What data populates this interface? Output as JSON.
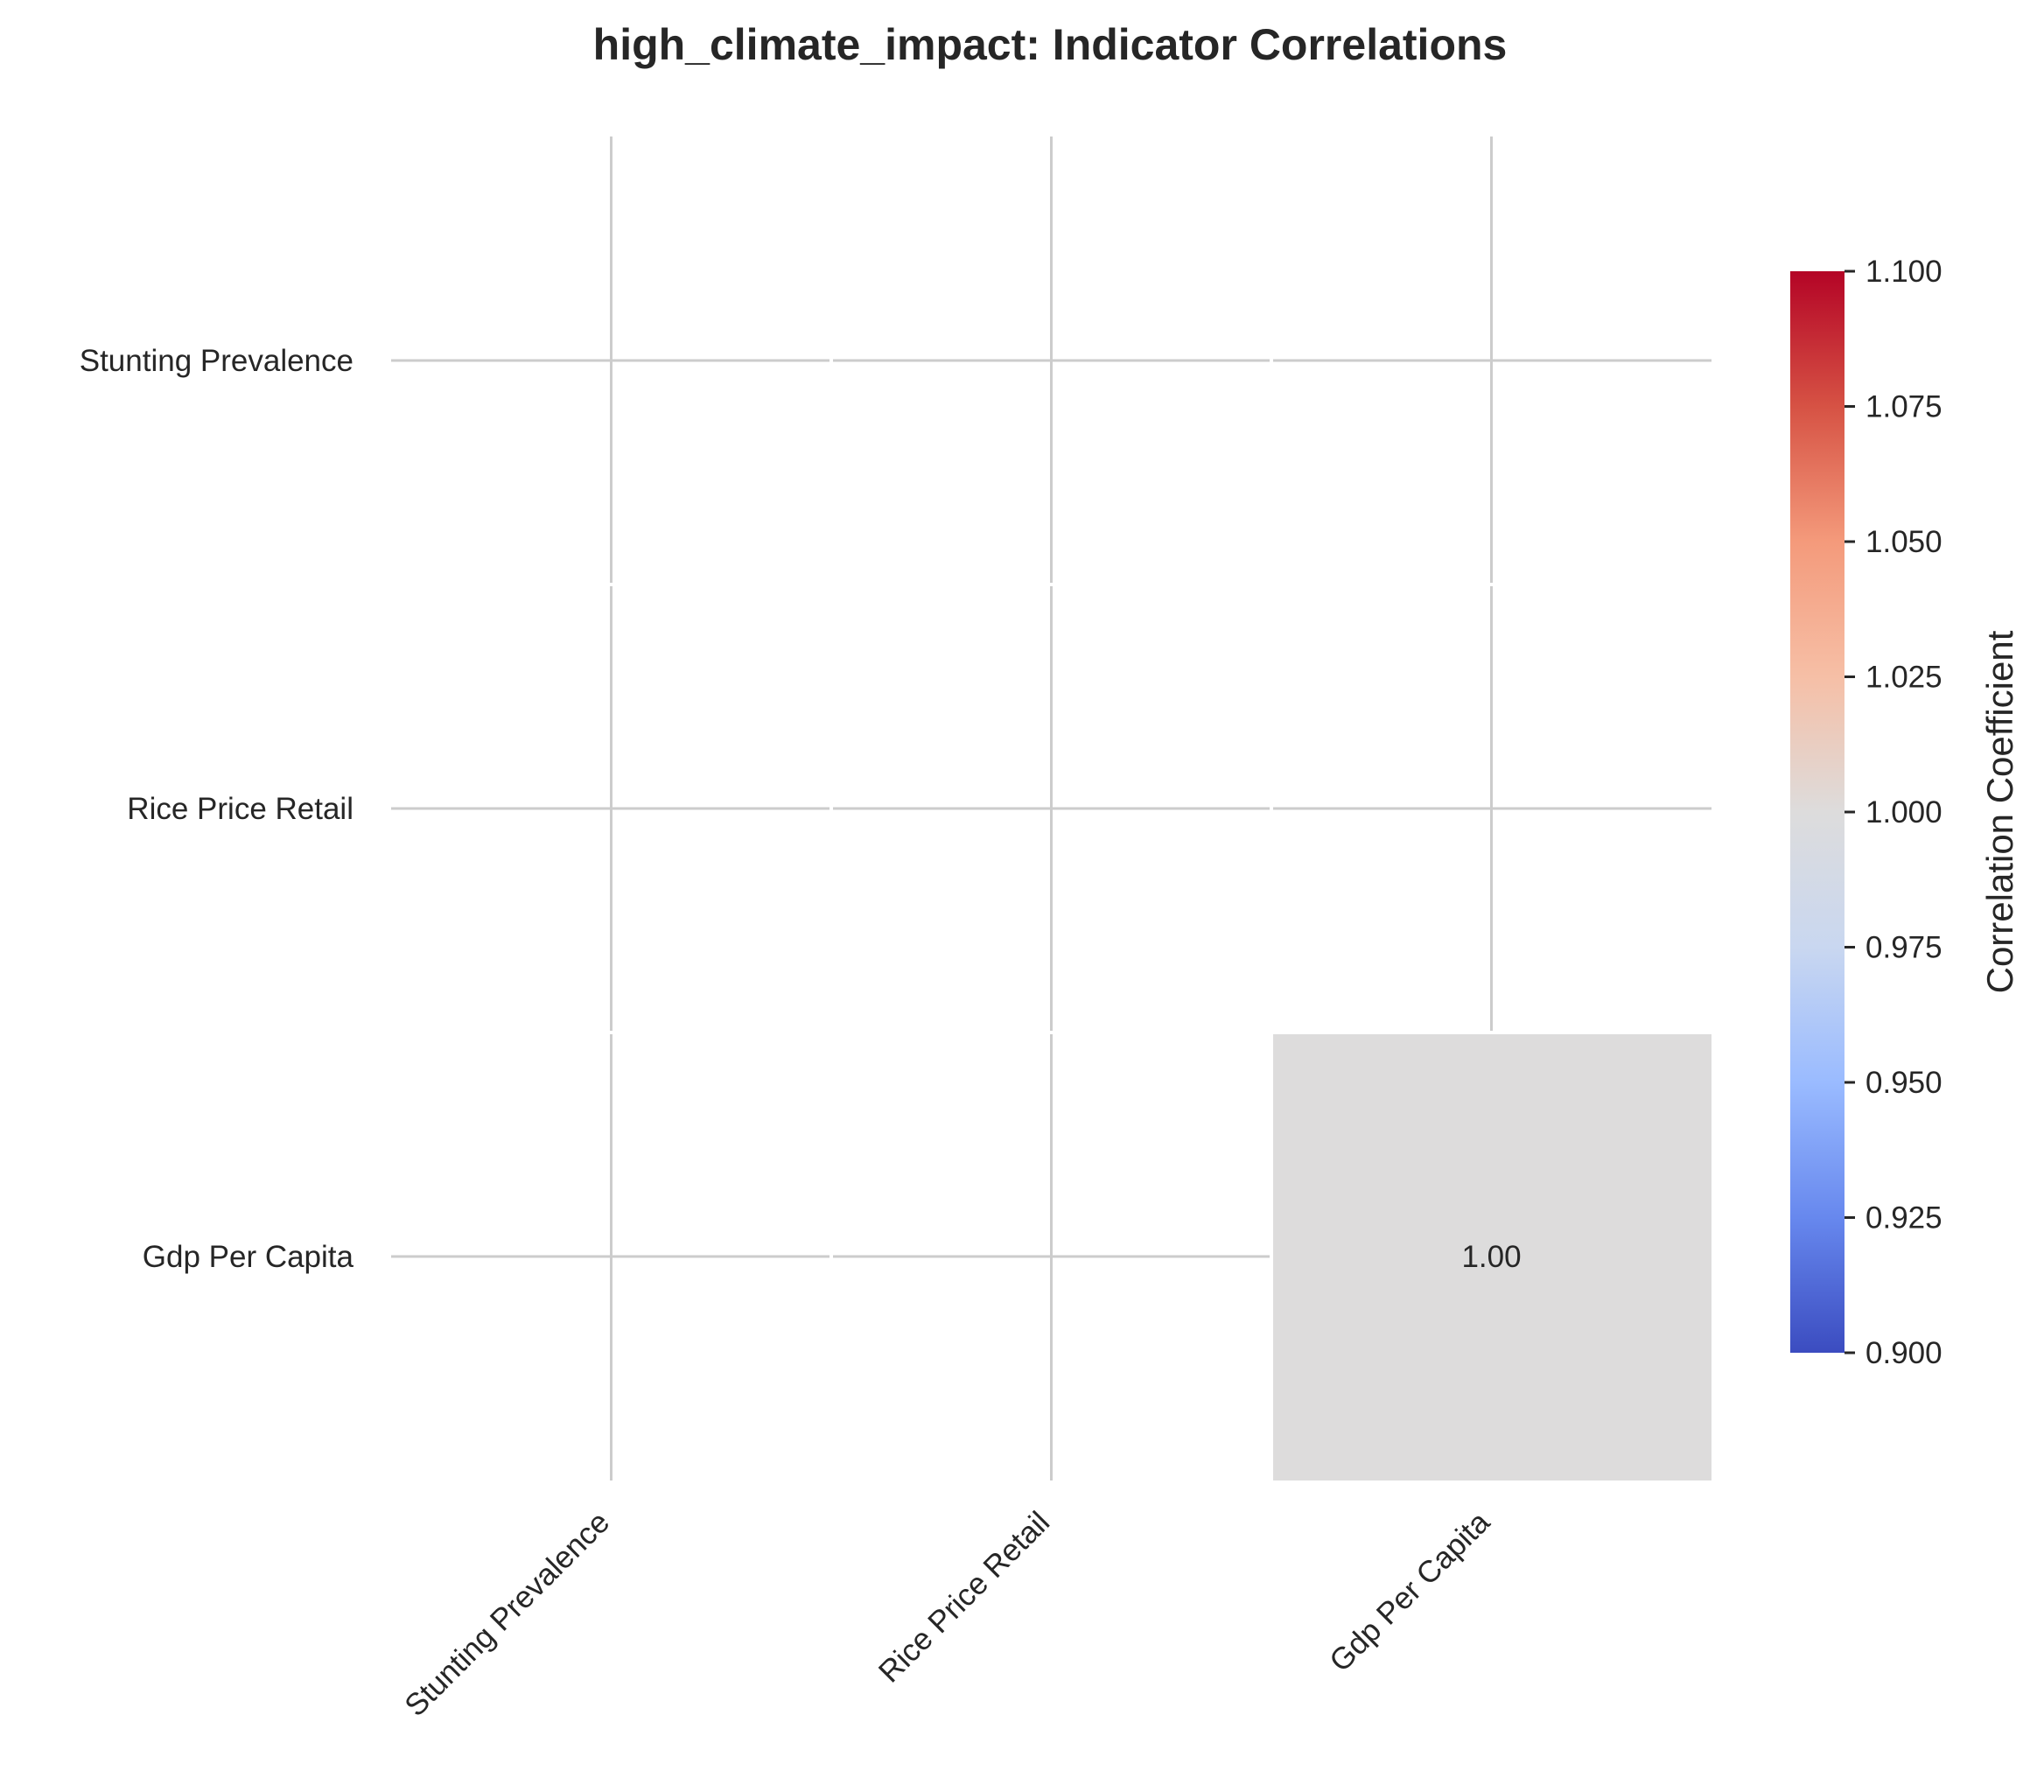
{
  "chart_data": {
    "type": "heatmap",
    "title": "high_climate_impact: Indicator Correlations",
    "row_labels": [
      "Stunting Prevalence",
      "Rice Price Retail",
      "Gdp Per Capita"
    ],
    "col_labels": [
      "Stunting Prevalence",
      "Rice Price Retail",
      "Gdp Per Capita"
    ],
    "values": [
      [
        null,
        null,
        null
      ],
      [
        null,
        null,
        null
      ],
      [
        null,
        null,
        1.0
      ]
    ],
    "annotations": [
      [
        null,
        null,
        null
      ],
      [
        null,
        null,
        null
      ],
      [
        null,
        null,
        "1.00"
      ]
    ],
    "grid": true,
    "colorbar": {
      "label": "Correlation Coefficient",
      "vmin": 0.9,
      "vmax": 1.1,
      "ticks": [
        "1.100",
        "1.075",
        "1.050",
        "1.025",
        "1.000",
        "0.975",
        "0.950",
        "0.925",
        "0.900"
      ],
      "tick_values": [
        1.1,
        1.075,
        1.05,
        1.025,
        1.0,
        0.975,
        0.95,
        0.925,
        0.9
      ],
      "colormap": "coolwarm",
      "color_stops": [
        "#3b4cc0",
        "#6788ee",
        "#9abbff",
        "#c9d7f0",
        "#dddcdc",
        "#f6bfa6",
        "#f49a7b",
        "#d65244",
        "#b40426"
      ]
    },
    "colors": {
      "grid_line": "#cccccc",
      "text": "#262626",
      "background": "#ffffff"
    }
  }
}
